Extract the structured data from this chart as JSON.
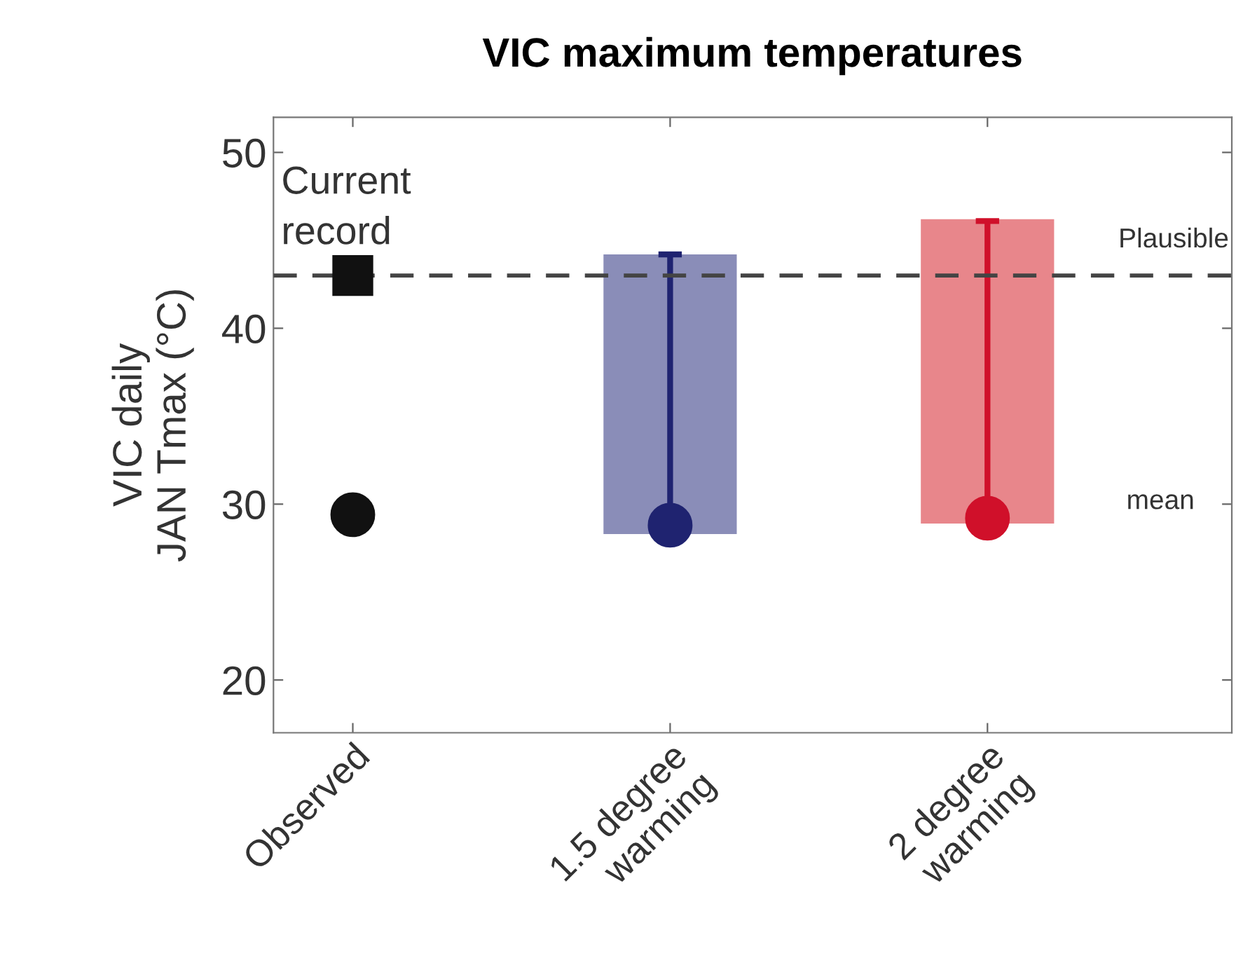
{
  "chart_data": {
    "type": "bar",
    "title": "VIC maximum temperatures",
    "ylabel": "VIC daily\nJAN Tmax (°C)",
    "categories": [
      "Observed",
      "1.5 degree\nwarming",
      "2 degree\nwarming"
    ],
    "ylim": [
      17,
      52
    ],
    "yticks": [
      20,
      30,
      40,
      50
    ],
    "grid": false,
    "legend": false,
    "series": [
      {
        "base": [
          null,
          28.3,
          28.9
        ],
        "values": [
          null,
          15.9,
          17.3
        ],
        "colors": [
          "#000000",
          "#8a8db8",
          "#e8868b"
        ]
      },
      {
        "type": "scatter",
        "marker": "circle",
        "values": [
          29.4,
          28.8,
          29.2
        ],
        "colors": [
          "#111111",
          "#1f2370",
          "#d0102a"
        ],
        "errors": [
          null,
          [
            28.8,
            44.2
          ],
          [
            29.2,
            46.1
          ]
        ]
      },
      {
        "type": "scatter",
        "marker": "square",
        "values": [
          43,
          null,
          null
        ],
        "colors": [
          "#111111",
          "#111111",
          "#111111"
        ]
      }
    ],
    "ref_lines": [
      {
        "axis": "y",
        "value": 43,
        "label": "Current\nrecord",
        "line_style": "dashed",
        "color": "#444444"
      }
    ],
    "annotations": [
      "Plausible",
      "mean"
    ]
  }
}
